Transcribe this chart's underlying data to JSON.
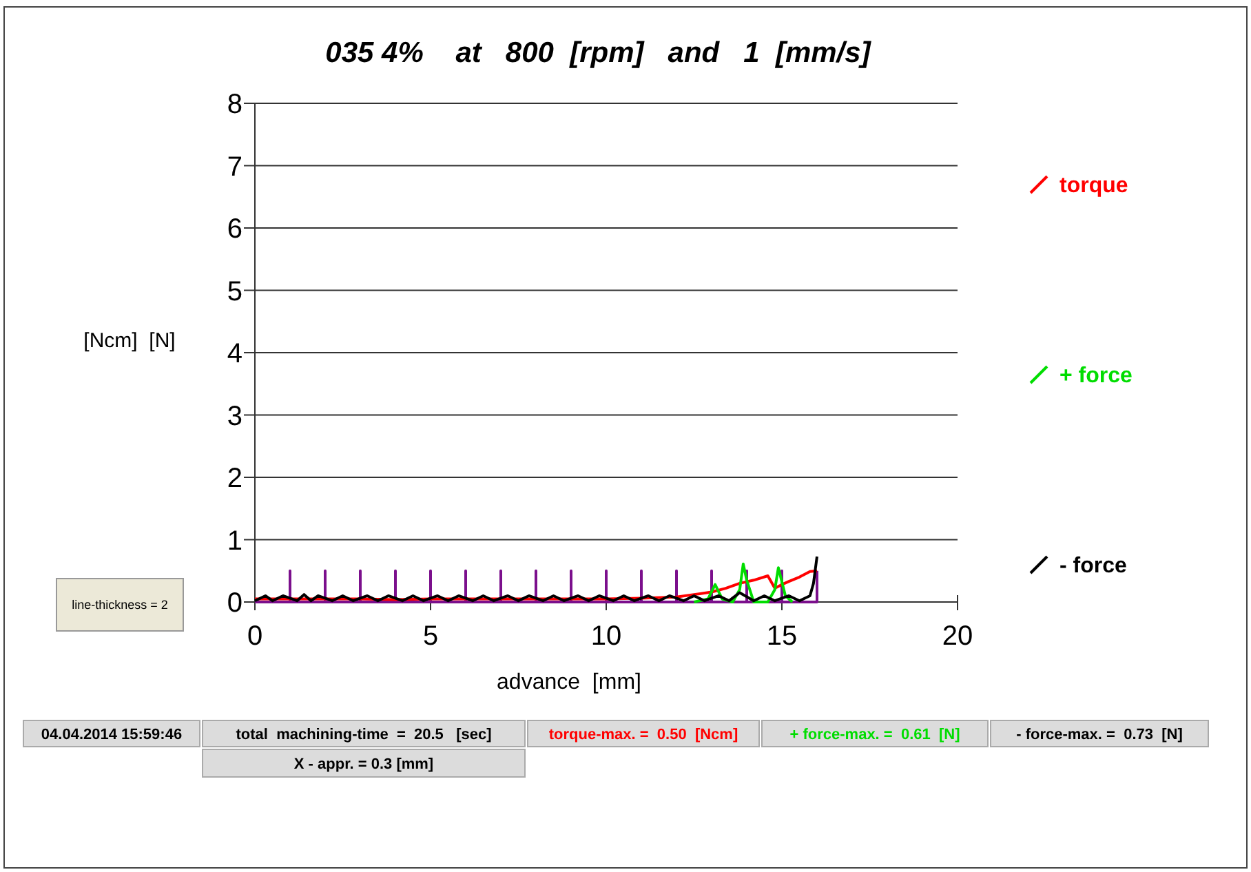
{
  "chart_data": {
    "type": "line",
    "title": "035 4%    at   800  [rpm]   and   1  [mm/s]",
    "xlabel": "advance  [mm]",
    "ylabel": "[Ncm]  [N]",
    "xlim": [
      0,
      20
    ],
    "xticks": [
      0,
      5,
      10,
      15,
      20
    ],
    "ylim": [
      0,
      8
    ],
    "yticks": [
      0,
      1,
      2,
      3,
      4,
      5,
      6,
      7,
      8
    ],
    "grid": "y",
    "legend": "right",
    "marker": "none",
    "line_style": "solid",
    "series": [
      {
        "color": "#7b0f8c",
        "x": [
          0,
          1,
          1,
          1,
          2,
          2,
          2,
          3,
          3,
          3,
          4,
          4,
          4,
          5,
          5,
          5,
          6,
          6,
          6,
          7,
          7,
          7,
          8,
          8,
          8,
          9,
          9,
          9,
          10,
          10,
          10,
          11,
          11,
          11,
          12,
          12,
          12,
          13,
          13,
          13,
          14,
          14,
          14,
          15,
          15,
          15,
          16,
          16
        ],
        "values": [
          0,
          0,
          0.5,
          0,
          0,
          0.5,
          0,
          0,
          0.5,
          0,
          0,
          0.5,
          0,
          0,
          0.5,
          0,
          0,
          0.5,
          0,
          0,
          0.5,
          0,
          0,
          0.5,
          0,
          0,
          0.5,
          0,
          0,
          0.5,
          0,
          0,
          0.5,
          0,
          0,
          0.5,
          0,
          0,
          0.5,
          0,
          0,
          0.5,
          0,
          0,
          0.5,
          0,
          0,
          0.5
        ]
      },
      {
        "name": "torque",
        "color": "#ff0000",
        "x": [
          0,
          1,
          2,
          3,
          4,
          5,
          6,
          7,
          8,
          9,
          10,
          11,
          12,
          12.5,
          13,
          13.4,
          13.8,
          14.2,
          14.6,
          14.8,
          15,
          15.2,
          15.5,
          15.8,
          16
        ],
        "values": [
          0.05,
          0.05,
          0.05,
          0.05,
          0.04,
          0.05,
          0.05,
          0.05,
          0.05,
          0.05,
          0.05,
          0.06,
          0.08,
          0.12,
          0.16,
          0.22,
          0.3,
          0.35,
          0.42,
          0.22,
          0.28,
          0.33,
          0.4,
          0.49,
          0.5
        ]
      },
      {
        "name": "+ force",
        "color": "#00dd00",
        "x": [
          12.5,
          12.9,
          13.1,
          13.3,
          13.6,
          13.8,
          13.9,
          14.0,
          14.2,
          14.6,
          14.8,
          14.9,
          15.1,
          15.3
        ],
        "values": [
          0,
          0.05,
          0.28,
          0.05,
          0,
          0.2,
          0.61,
          0.35,
          0,
          0,
          0.2,
          0.55,
          0.1,
          0
        ]
      },
      {
        "name": "- force",
        "color": "#000000",
        "x": [
          0,
          0.3,
          0.5,
          0.8,
          1.2,
          1.4,
          1.6,
          1.8,
          2.2,
          2.5,
          2.8,
          3.2,
          3.5,
          3.8,
          4.2,
          4.5,
          4.8,
          5.2,
          5.5,
          5.8,
          6.2,
          6.5,
          6.8,
          7.2,
          7.5,
          7.8,
          8.2,
          8.5,
          8.8,
          9.2,
          9.5,
          9.8,
          10.2,
          10.5,
          10.8,
          11.2,
          11.5,
          11.8,
          12.2,
          12.5,
          12.8,
          13.2,
          13.5,
          13.8,
          14.2,
          14.5,
          14.8,
          15.2,
          15.5,
          15.8,
          15.9,
          16
        ],
        "values": [
          0.02,
          0.1,
          0.02,
          0.1,
          0.02,
          0.12,
          0.02,
          0.1,
          0.02,
          0.1,
          0.02,
          0.1,
          0.02,
          0.1,
          0.02,
          0.1,
          0.02,
          0.1,
          0.02,
          0.1,
          0.02,
          0.1,
          0.02,
          0.1,
          0.02,
          0.1,
          0.02,
          0.1,
          0.02,
          0.1,
          0.02,
          0.1,
          0.02,
          0.1,
          0.02,
          0.1,
          0.02,
          0.1,
          0.02,
          0.1,
          0.02,
          0.1,
          0.02,
          0.15,
          0.02,
          0.1,
          0.02,
          0.1,
          0.02,
          0.1,
          0.3,
          0.73
        ]
      }
    ],
    "annotations": [
      "04.04.2014 15:59:46",
      "total  machining-time  =  20.5   [sec]",
      "torque-max. =  0.50  [Ncm]",
      "+ force-max. =  0.61  [N]",
      "- force-max. =  0.73  [N]",
      "X - appr. = 0.3 [mm]",
      "line-thickness = 2"
    ]
  }
}
